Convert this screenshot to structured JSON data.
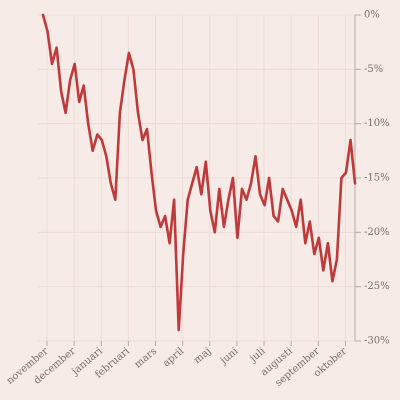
{
  "chart_data": {
    "type": "line",
    "categories": [
      "november",
      null,
      null,
      null,
      null,
      null,
      "december",
      null,
      null,
      null,
      null,
      null,
      "januari",
      null,
      null,
      null,
      null,
      null,
      "februari",
      null,
      null,
      null,
      null,
      null,
      "mars",
      null,
      null,
      null,
      null,
      null,
      "april",
      null,
      null,
      null,
      null,
      null,
      "maj",
      null,
      null,
      null,
      null,
      null,
      "juni",
      null,
      null,
      null,
      null,
      null,
      "juli",
      null,
      null,
      null,
      null,
      null,
      "augusti",
      null,
      null,
      null,
      null,
      null,
      "september",
      null,
      null,
      null,
      null,
      null,
      "oktober",
      null,
      null,
      null
    ],
    "series": [
      {
        "color": "#c0393b",
        "values": [
          0,
          -1.5,
          -4.5,
          -3,
          -7,
          -9,
          -6,
          -4.5,
          -8,
          -6.5,
          -10,
          -12.5,
          -11,
          -11.5,
          -13,
          -15.5,
          -17,
          -9,
          -6,
          -3.5,
          -5,
          -9,
          -11.5,
          -10.5,
          -14.5,
          -18,
          -19.5,
          -18.5,
          -21,
          -17,
          -29,
          -22,
          -17,
          -15.5,
          -14,
          -16.5,
          -13.5,
          -18,
          -20,
          -16,
          -19.5,
          -17,
          -15,
          -20.5,
          -16,
          -17,
          -15.5,
          -13,
          -16.5,
          -17.5,
          -15,
          -18.5,
          -19,
          -16,
          -17,
          -18,
          -19.5,
          -17,
          -21,
          -19,
          -22,
          -20.5,
          -23.5,
          -21,
          -24.5,
          -22.5,
          -15,
          -14.5,
          -11.5,
          -15.5
        ]
      }
    ],
    "ylim": [
      -30,
      0
    ],
    "yticks": [
      {
        "value": 0,
        "label": "0%"
      },
      {
        "value": -5,
        "label": "-5%"
      },
      {
        "value": -10,
        "label": "-10%"
      },
      {
        "value": -15,
        "label": "-15%"
      },
      {
        "value": -20,
        "label": "-20%"
      },
      {
        "value": -25,
        "label": "-25%"
      },
      {
        "value": -30,
        "label": "-30%"
      }
    ],
    "grid": true
  }
}
